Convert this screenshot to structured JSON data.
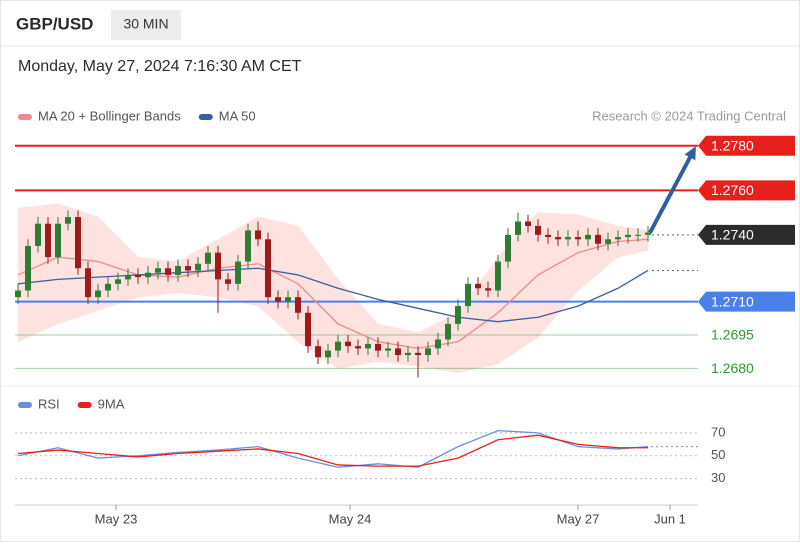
{
  "header": {
    "symbol": "GBP/USD",
    "timeframe": "30 MIN",
    "datetime": "Monday, May 27, 2024 7:16:30 AM CET"
  },
  "chart_data": [
    {
      "type": "candlestick",
      "source": "Research © 2024 Trading Central",
      "categories": [
        null,
        null,
        null,
        null,
        null,
        null,
        null,
        null,
        null,
        null,
        null,
        null,
        null,
        null,
        null,
        null,
        null,
        null,
        null,
        null,
        null,
        null,
        null,
        null,
        null,
        null,
        null,
        null,
        null,
        null,
        null,
        null,
        null,
        null,
        null,
        null,
        null,
        null,
        null,
        null,
        null,
        null,
        null,
        null,
        null,
        null,
        null,
        null,
        null,
        null,
        null,
        null,
        null,
        null,
        null,
        null,
        null,
        null,
        null,
        null,
        null,
        null,
        null,
        null
      ],
      "open": [
        1.2712,
        1.2715,
        1.2735,
        1.2745,
        1.273,
        1.2745,
        1.2748,
        1.2725,
        1.2712,
        1.2715,
        1.2718,
        1.272,
        1.2722,
        1.2721,
        1.2723,
        1.2725,
        1.2722,
        1.2726,
        1.2724,
        1.2727,
        1.2732,
        1.272,
        1.2718,
        1.2728,
        1.2742,
        1.2738,
        1.2712,
        1.271,
        1.2712,
        1.2705,
        1.269,
        1.2685,
        1.2688,
        1.2692,
        1.269,
        1.2689,
        1.2691,
        1.2688,
        1.2689,
        1.2686,
        1.2687,
        1.2686,
        1.2689,
        1.2693,
        1.27,
        1.2708,
        1.2718,
        1.2716,
        1.2715,
        1.2728,
        1.274,
        1.2746,
        1.2744,
        1.274,
        1.2739,
        1.2738,
        1.2739,
        1.2738,
        1.274,
        1.2736,
        1.2738,
        1.2739,
        1.274,
        1.274
      ],
      "high": [
        1.2718,
        1.2738,
        1.2748,
        1.2748,
        1.2748,
        1.2751,
        1.2751,
        1.2728,
        1.2718,
        1.2721,
        1.2723,
        1.2725,
        1.2725,
        1.2726,
        1.2728,
        1.2728,
        1.2729,
        1.2729,
        1.273,
        1.2735,
        1.2735,
        1.2723,
        1.2731,
        1.2745,
        1.2746,
        1.2741,
        1.2715,
        1.2715,
        1.2715,
        1.2708,
        1.2693,
        1.2691,
        1.2695,
        1.2695,
        1.2693,
        1.2694,
        1.2694,
        1.2692,
        1.2692,
        1.269,
        1.269,
        1.2692,
        1.2696,
        1.2703,
        1.2711,
        1.2721,
        1.2721,
        1.2719,
        1.2731,
        1.2743,
        1.275,
        1.2749,
        1.2747,
        1.2743,
        1.2742,
        1.2742,
        1.2742,
        1.2743,
        1.2743,
        1.2741,
        1.2742,
        1.2743,
        1.2743,
        1.2744
      ],
      "low": [
        1.2709,
        1.2712,
        1.2732,
        1.2727,
        1.2727,
        1.2742,
        1.2722,
        1.2709,
        1.2709,
        1.2712,
        1.2715,
        1.2717,
        1.2718,
        1.2718,
        1.272,
        1.2719,
        1.2719,
        1.2721,
        1.2721,
        1.2724,
        1.2705,
        1.2715,
        1.2715,
        1.2725,
        1.2735,
        1.2709,
        1.2707,
        1.2707,
        1.2702,
        1.2687,
        1.2682,
        1.2682,
        1.2685,
        1.2687,
        1.2686,
        1.2686,
        1.2685,
        1.2685,
        1.2683,
        1.2683,
        1.2676,
        1.2683,
        1.2686,
        1.269,
        1.2697,
        1.2705,
        1.2713,
        1.2712,
        1.2712,
        1.2725,
        1.2737,
        1.2741,
        1.2737,
        1.2736,
        1.2735,
        1.2735,
        1.2735,
        1.2735,
        1.2733,
        1.2733,
        1.2735,
        1.2736,
        1.2737,
        1.2737
      ],
      "close": [
        1.2715,
        1.2735,
        1.2745,
        1.273,
        1.2745,
        1.2748,
        1.2725,
        1.2712,
        1.2715,
        1.2718,
        1.272,
        1.2722,
        1.2721,
        1.2723,
        1.2725,
        1.2722,
        1.2726,
        1.2724,
        1.2727,
        1.2732,
        1.272,
        1.2718,
        1.2728,
        1.2742,
        1.2738,
        1.2712,
        1.271,
        1.2712,
        1.2705,
        1.269,
        1.2685,
        1.2688,
        1.2692,
        1.269,
        1.2689,
        1.2691,
        1.2688,
        1.2689,
        1.2686,
        1.2687,
        1.2686,
        1.2689,
        1.2693,
        1.27,
        1.2708,
        1.2718,
        1.2716,
        1.2715,
        1.2728,
        1.274,
        1.2746,
        1.2744,
        1.274,
        1.2739,
        1.2738,
        1.2739,
        1.2738,
        1.274,
        1.2736,
        1.2738,
        1.2739,
        1.274,
        1.274,
        1.2741
      ],
      "up_color": "#2e7d32",
      "down_color": "#9e1b1b",
      "overlays": [
        {
          "name": "MA 20 + Bollinger Bands",
          "color": "#f08a8a",
          "band_color": "#fde2df",
          "x": [
            0,
            4,
            8,
            12,
            16,
            20,
            24,
            28,
            32,
            36,
            40,
            44,
            48,
            52,
            56,
            60,
            63
          ],
          "values": [
            1.2722,
            1.273,
            1.2728,
            1.2722,
            1.2721,
            1.2725,
            1.2727,
            1.2718,
            1.27,
            1.2692,
            1.2689,
            1.2692,
            1.2705,
            1.2722,
            1.2732,
            1.2737,
            1.2738
          ],
          "upper": [
            1.2752,
            1.2754,
            1.2748,
            1.273,
            1.2728,
            1.2738,
            1.2748,
            1.2744,
            1.272,
            1.27,
            1.2696,
            1.2705,
            1.273,
            1.275,
            1.2749,
            1.2744,
            1.2742
          ],
          "lower": [
            1.2692,
            1.27,
            1.2706,
            1.2712,
            1.2714,
            1.2712,
            1.2708,
            1.2692,
            1.268,
            1.2683,
            1.2681,
            1.2678,
            1.2682,
            1.2694,
            1.2715,
            1.273,
            1.2733
          ]
        },
        {
          "name": "MA 50",
          "color": "#3b5e9e",
          "x": [
            0,
            4,
            8,
            12,
            16,
            20,
            24,
            28,
            32,
            36,
            40,
            44,
            48,
            52,
            56,
            60,
            63
          ],
          "values": [
            1.2718,
            1.272,
            1.2721,
            1.2722,
            1.2723,
            1.2724,
            1.2725,
            1.2722,
            1.2716,
            1.2711,
            1.2707,
            1.2703,
            1.2701,
            1.2703,
            1.2708,
            1.2716,
            1.2724
          ]
        }
      ],
      "levels": [
        {
          "value": 1.278,
          "label": "1.2780",
          "color": "#e8201c",
          "style": "tag",
          "line": "solid"
        },
        {
          "value": 1.276,
          "label": "1.2760",
          "color": "#e8201c",
          "style": "tag",
          "line": "solid"
        },
        {
          "value": 1.274,
          "label": "1.2740",
          "color": "#2b2b2b",
          "style": "tag",
          "line": "dotted"
        },
        {
          "value": 1.271,
          "label": "1.2710",
          "color": "#4a80ec",
          "style": "tag",
          "line": "solid"
        },
        {
          "value": 1.2695,
          "label": "1.2695",
          "color": "#2e9a2e",
          "style": "text",
          "line": "thin"
        },
        {
          "value": 1.268,
          "label": "1.2680",
          "color": "#2e9a2e",
          "style": "text",
          "line": "thin"
        }
      ],
      "target_color": "#2f5f9e",
      "xlim": [
        -0.3,
        68
      ],
      "ylim": [
        1.2673,
        1.2788
      ]
    },
    {
      "type": "line",
      "series": [
        {
          "name": "RSI",
          "color": "#6b8fdc",
          "x": [
            0,
            4,
            8,
            12,
            16,
            20,
            24,
            28,
            32,
            36,
            40,
            44,
            48,
            52,
            56,
            60,
            63
          ],
          "values": [
            50,
            57,
            48,
            50,
            53,
            55,
            58,
            48,
            40,
            43,
            40,
            58,
            72,
            70,
            58,
            56,
            58
          ]
        },
        {
          "name": "9MA",
          "color": "#e8201c",
          "x": [
            0,
            4,
            8,
            12,
            16,
            20,
            24,
            28,
            32,
            36,
            40,
            44,
            48,
            52,
            56,
            60,
            63
          ],
          "values": [
            52,
            55,
            52,
            49,
            52,
            54,
            56,
            52,
            42,
            41,
            41,
            48,
            64,
            68,
            60,
            57,
            57
          ]
        }
      ],
      "xlim": [
        -0.3,
        68
      ],
      "ylim": [
        14,
        90
      ],
      "yticks": [
        70,
        50,
        30
      ],
      "xticks": [
        {
          "value": 9.8,
          "label": "May 23"
        },
        {
          "value": 33.2,
          "label": "May 24"
        },
        {
          "value": 56,
          "label": "May 27"
        },
        {
          "value": 65.2,
          "label": "Jun 1"
        }
      ]
    }
  ]
}
